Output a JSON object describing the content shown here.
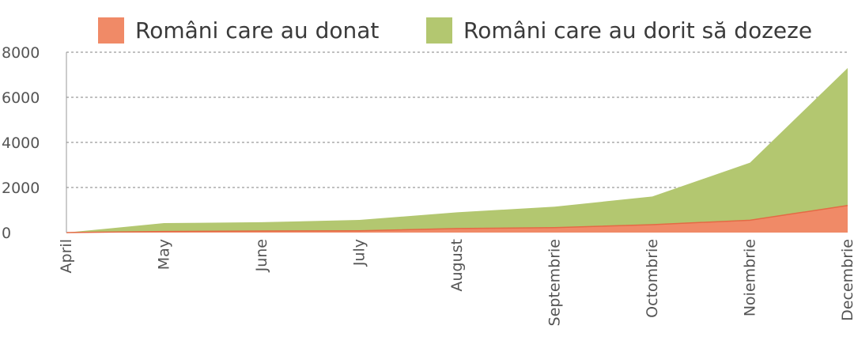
{
  "chart_data": {
    "type": "area",
    "stacked": true,
    "categories": [
      "April",
      "May",
      "June",
      "July",
      "August",
      "Septembrie",
      "Octombrie",
      "Noiembrie",
      "Decembrie"
    ],
    "series": [
      {
        "name": "Români care au donat",
        "color": "#f08a67",
        "values": [
          0,
          50,
          70,
          80,
          180,
          220,
          350,
          550,
          1200
        ]
      },
      {
        "name": "Români care au dorit să dozeze",
        "color": "#b3c770",
        "values": [
          0,
          370,
          390,
          480,
          720,
          930,
          1250,
          2550,
          6100
        ]
      }
    ],
    "ylim": [
      0,
      8000
    ],
    "yticks": [
      0,
      2000,
      4000,
      6000,
      8000
    ],
    "grid": true,
    "legend_position": "top"
  }
}
